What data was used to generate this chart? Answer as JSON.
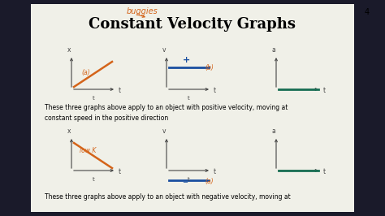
{
  "title": "Constant Velocity Graphs",
  "page_number": "4",
  "bg_color": "#e8e8e0",
  "content_bg": "#f0f0e8",
  "text_color": "#000000",
  "orange_color": "#d4641a",
  "blue_color": "#1a4fa0",
  "green_color": "#1a7055",
  "axis_color": "#444444",
  "border_color": "#1a1a2a",
  "text1": "These three graphs above apply to an object with positive velocity, moving at\nconstant speed in the positive direction",
  "text2": "These three graphs above apply to an object with negative velocity, moving at"
}
